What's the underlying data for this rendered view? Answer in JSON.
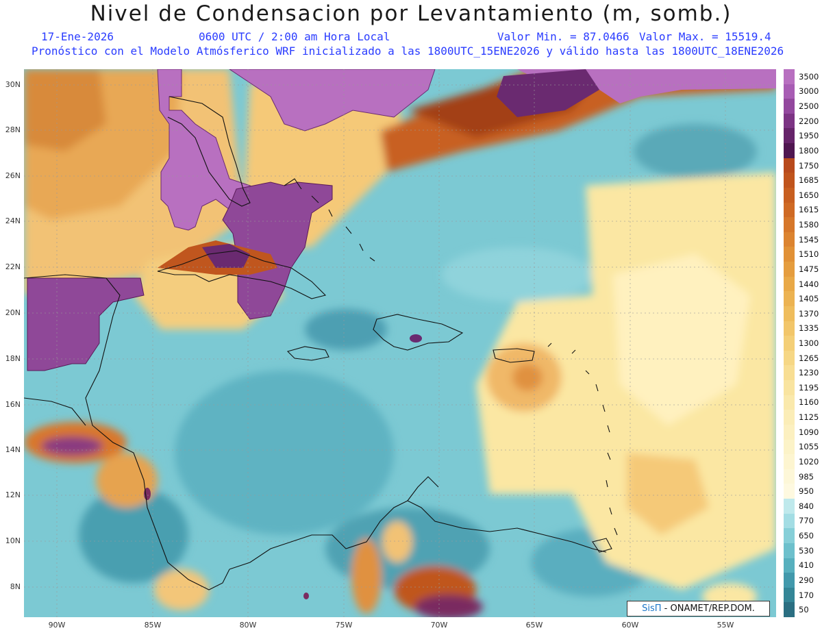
{
  "header": {
    "title": "Nivel de Condensacion por Levantamiento (m, somb.)",
    "date": "17-Ene-2026",
    "time": "0600 UTC / 2:00 am Hora Local",
    "min_value": "Valor Min. = 87.0466",
    "max_value": "Valor Max. = 15519.4",
    "model_info": "Pronóstico con el Modelo Atmósferico WRF inicializado a las 1800UTC_15ENE2026 y válido hasta las  1800UTC_18ENE2026"
  },
  "axes": {
    "lat_labels": [
      "30N",
      "28N",
      "26N",
      "24N",
      "22N",
      "20N",
      "18N",
      "16N",
      "14N",
      "12N",
      "10N",
      "8N"
    ],
    "lon_labels": [
      "90W",
      "85W",
      "80W",
      "75W",
      "70W",
      "65W",
      "60W",
      "55W"
    ]
  },
  "colorbar": {
    "levels": [
      "3500",
      "3000",
      "2500",
      "2200",
      "1950",
      "1800",
      "1750",
      "1685",
      "1650",
      "1615",
      "1580",
      "1545",
      "1510",
      "1475",
      "1440",
      "1405",
      "1370",
      "1335",
      "1300",
      "1265",
      "1230",
      "1195",
      "1160",
      "1125",
      "1090",
      "1055",
      "1020",
      "985",
      "950",
      "840",
      "770",
      "650",
      "530",
      "410",
      "290",
      "170",
      "50"
    ],
    "colors": [
      "#b870c0",
      "#a85db4",
      "#93489e",
      "#7c3484",
      "#66246a",
      "#4f1650",
      "#b84a1c",
      "#c0541c",
      "#c85f20",
      "#cf6a24",
      "#d6772a",
      "#dc8430",
      "#e19136",
      "#e59d3e",
      "#e9a947",
      "#ecb352",
      "#efbd5d",
      "#f2c66a",
      "#f4cf77",
      "#f6d785",
      "#f8de93",
      "#f9e4a0",
      "#fae9ac",
      "#fbedb7",
      "#fcf0c0",
      "#fcf3c8",
      "#fdf5d0",
      "#fdf7d8",
      "#fef9e0",
      "#bfe9ec",
      "#a3dde4",
      "#86cfd8",
      "#6dc0cc",
      "#57b0be",
      "#4299ac",
      "#348697",
      "#2b6f82"
    ]
  },
  "credit": {
    "brand": "SisΠ",
    "text": " - ONAMET/REP.DOM."
  },
  "palette": {
    "ocean_teal": "#7cc9d3",
    "deep_teal": "#4a9fb0",
    "yellow": "#fbe9a6",
    "orange": "#e3a34c",
    "dark_orange": "#c0561e",
    "purple": "#b86ec2",
    "dark_purple": "#6a2a70",
    "coast": "#111111"
  }
}
